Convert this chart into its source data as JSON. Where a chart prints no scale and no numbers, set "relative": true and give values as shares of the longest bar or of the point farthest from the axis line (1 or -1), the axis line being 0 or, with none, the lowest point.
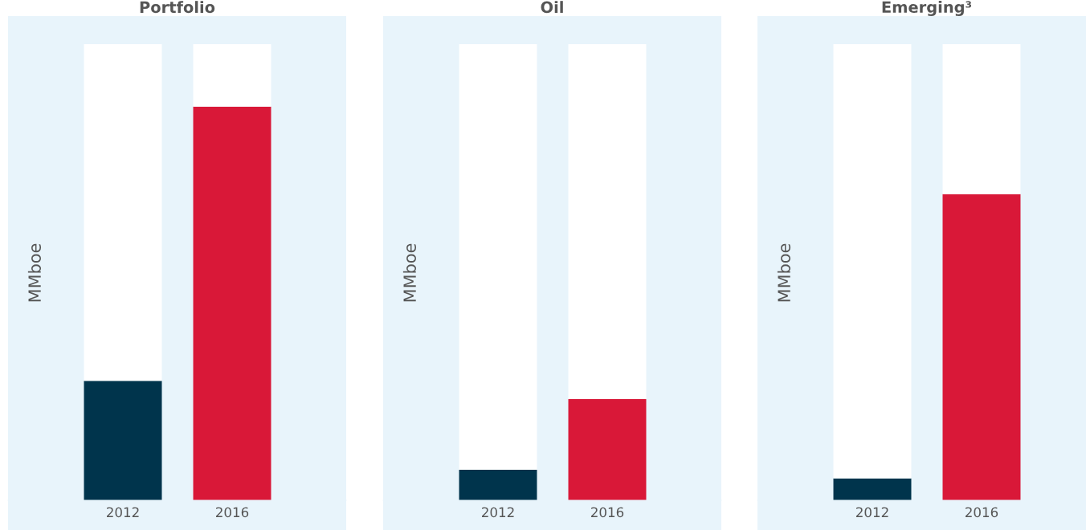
{
  "chart_data": [
    {
      "type": "bar",
      "title": "Portfolio",
      "ylabel": "MMboe",
      "categories": [
        "2012",
        "2016"
      ],
      "relative": true,
      "stacked": true,
      "grid": false,
      "legend": false,
      "series": [
        {
          "colors": [
            "#00344c",
            "#d91838"
          ],
          "values": [
            0.262,
            0.863
          ]
        },
        {
          "color": "#ffffff",
          "values": [
            0.738,
            0.137
          ]
        }
      ]
    },
    {
      "type": "bar",
      "title": "Oil",
      "ylabel": "MMboe",
      "categories": [
        "2012",
        "2016"
      ],
      "relative": true,
      "stacked": true,
      "grid": false,
      "legend": false,
      "series": [
        {
          "colors": [
            "#00344c",
            "#d91838"
          ],
          "values": [
            0.067,
            0.222
          ]
        },
        {
          "color": "#ffffff",
          "values": [
            0.933,
            0.778
          ]
        }
      ]
    },
    {
      "type": "bar",
      "title": "Emerging³",
      "ylabel": "MMboe",
      "categories": [
        "2012",
        "2016"
      ],
      "relative": true,
      "stacked": true,
      "grid": false,
      "legend": false,
      "series": [
        {
          "colors": [
            "#00344c",
            "#d91838"
          ],
          "values": [
            0.048,
            0.671
          ]
        },
        {
          "color": "#ffffff",
          "values": [
            0.952,
            0.329
          ]
        }
      ]
    }
  ]
}
